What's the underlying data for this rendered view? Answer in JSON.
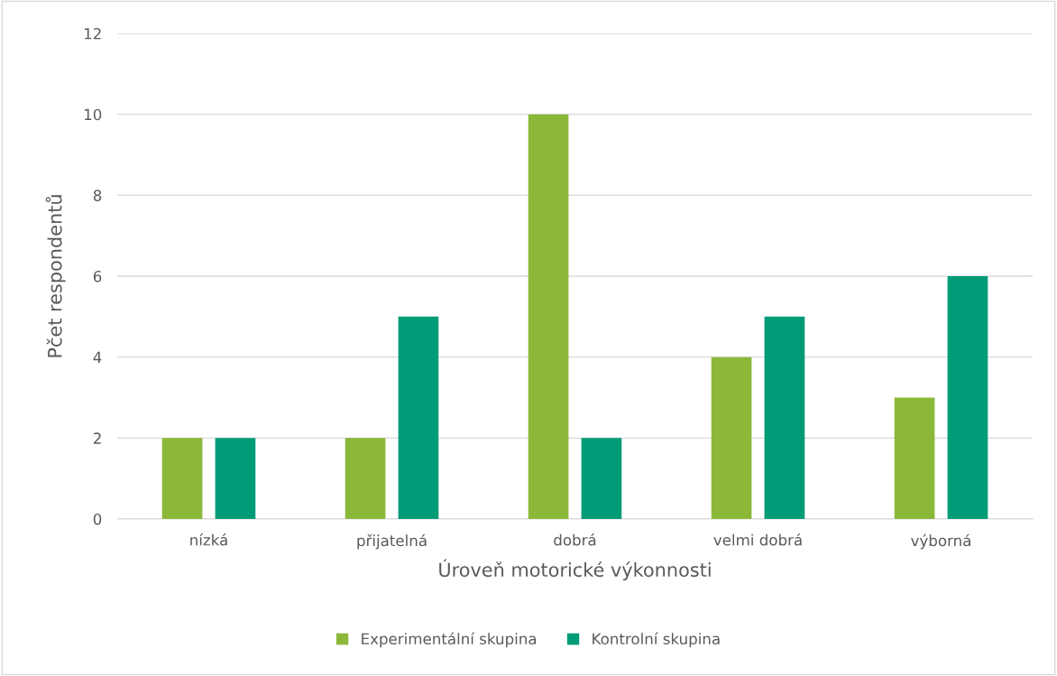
{
  "chart_data": {
    "type": "bar",
    "xlabel": "Úroveň motorické výkonnosti",
    "ylabel": "Pčet respondentů",
    "categories": [
      "nízká",
      "přijatelná",
      "dobrá",
      "velmi dobrá",
      "výborná"
    ],
    "series": [
      {
        "name": "Experimentální skupina",
        "color": "#8cb83a",
        "values": [
          2,
          2,
          10,
          4,
          3
        ]
      },
      {
        "name": "Kontrolní skupina",
        "color": "#009b77",
        "values": [
          2,
          5,
          2,
          5,
          6
        ]
      }
    ],
    "ylim": [
      0,
      12
    ],
    "yticks": [
      0,
      2,
      4,
      6,
      8,
      10,
      12
    ],
    "grid": "y",
    "legend": "bottom"
  }
}
